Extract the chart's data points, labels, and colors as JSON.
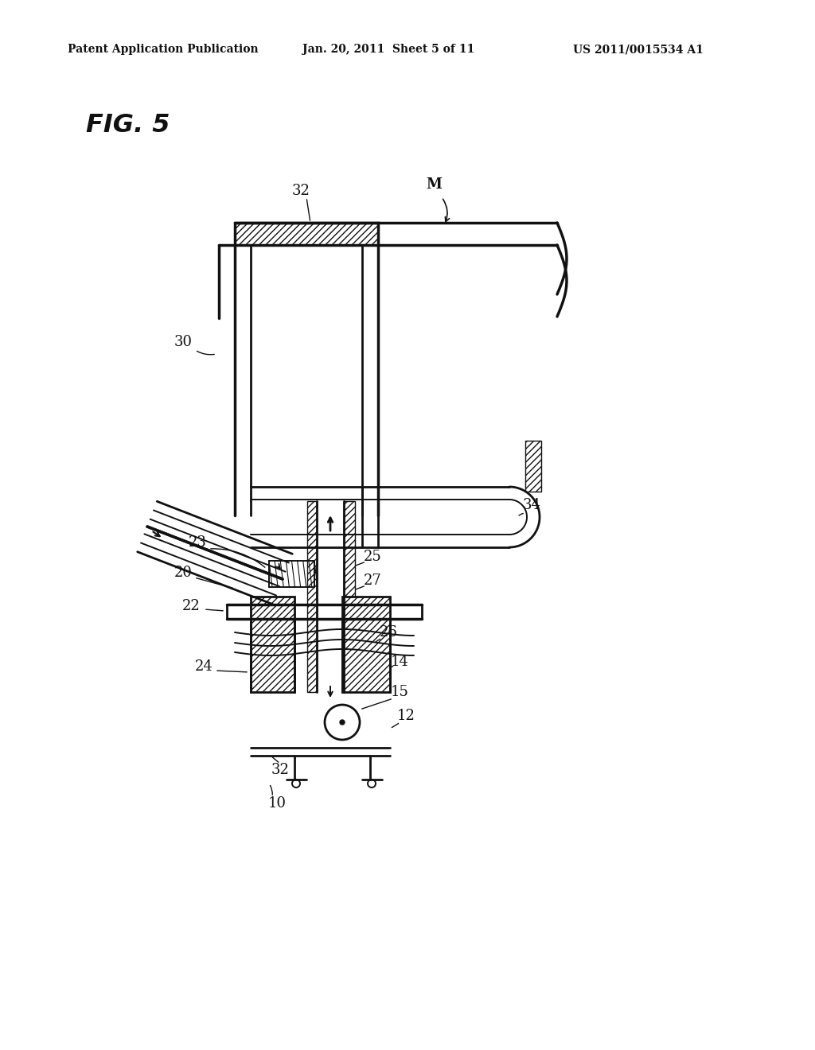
{
  "bg_color": "#ffffff",
  "line_color": "#111111",
  "header_left": "Patent Application Publication",
  "header_mid": "Jan. 20, 2011  Sheet 5 of 11",
  "header_right": "US 2011/0015534 A1",
  "fig_label": "FIG. 5",
  "lw_thin": 1.4,
  "lw_med": 2.0,
  "lw_thick": 2.5,
  "label_fontsize": 13
}
